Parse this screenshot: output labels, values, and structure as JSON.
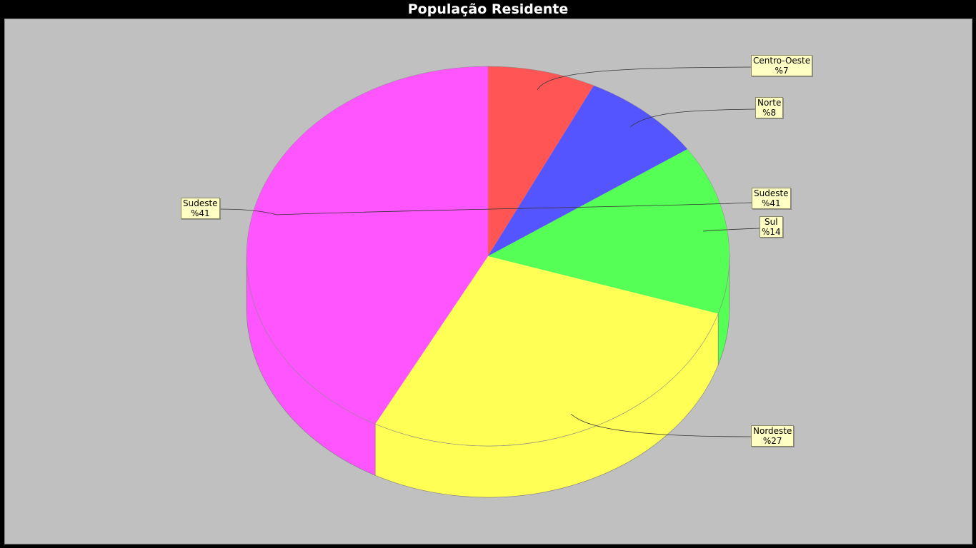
{
  "chart_data": {
    "type": "pie",
    "title": "População Residente",
    "slices": [
      {
        "name": "Centro-Oeste",
        "label": "%7",
        "value": 7,
        "color": "#ff5555"
      },
      {
        "name": "Norte",
        "label": "%8",
        "value": 8,
        "color": "#5555ff"
      },
      {
        "name": "Sul",
        "label": "%14",
        "value": 14,
        "color": "#55ff55"
      },
      {
        "name": "Nordeste",
        "label": "%27",
        "value": 27,
        "color": "#ffff55"
      },
      {
        "name": "Sudeste",
        "label": "%41",
        "value": 41,
        "color": "#ff55ff"
      }
    ],
    "extra_labels": [
      {
        "name": "Sudeste",
        "label": "%41"
      }
    ],
    "colors": {
      "background": "#c0c0c0",
      "frame": "#000000",
      "title": "#ffffff",
      "label_bg": "#ffffc4"
    }
  }
}
